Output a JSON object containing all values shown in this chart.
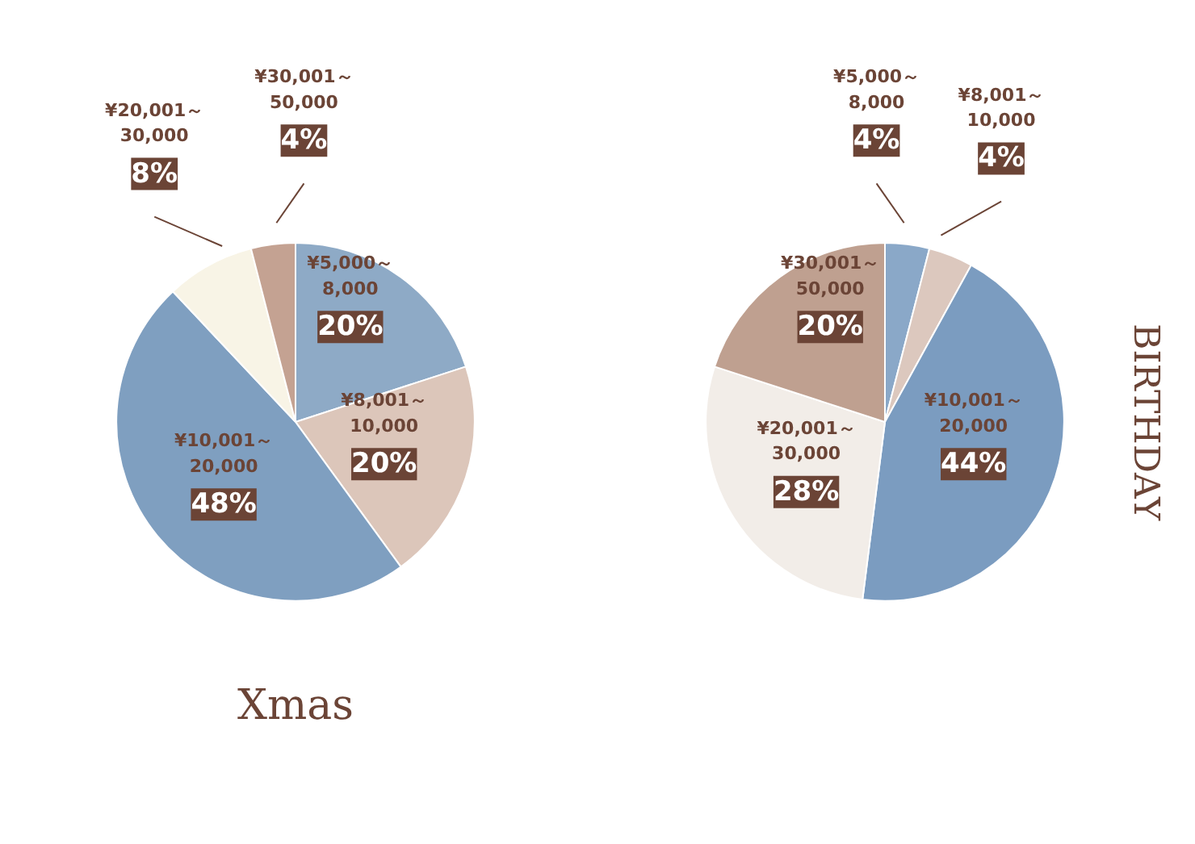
{
  "chart_data": [
    {
      "type": "pie",
      "title": "Xmas",
      "categories": [
        "¥5,000～8,000",
        "¥8,001～10,000",
        "¥10,001～20,000",
        "¥20,001～30,000",
        "¥30,001～50,000"
      ],
      "values": [
        20,
        20,
        48,
        8,
        4
      ],
      "value_labels": [
        "20%",
        "20%",
        "48%",
        "8%",
        "4%"
      ],
      "colors": [
        "#8eaac6",
        "#dcc6ba",
        "#7f9fc0",
        "#f8f4e6",
        "#c4a292"
      ]
    },
    {
      "type": "pie",
      "title": "BIRTHDAY",
      "categories": [
        "¥5,000～8,000",
        "¥8,001～10,000",
        "¥10,001～20,000",
        "¥20,001～30,000",
        "¥30,001～50,000"
      ],
      "values": [
        4,
        4,
        44,
        28,
        20
      ],
      "value_labels": [
        "4%",
        "4%",
        "44%",
        "28%",
        "20%"
      ],
      "colors": [
        "#8aa8c8",
        "#dcc8be",
        "#7b9cc0",
        "#f2ede8",
        "#bfa090"
      ]
    }
  ]
}
